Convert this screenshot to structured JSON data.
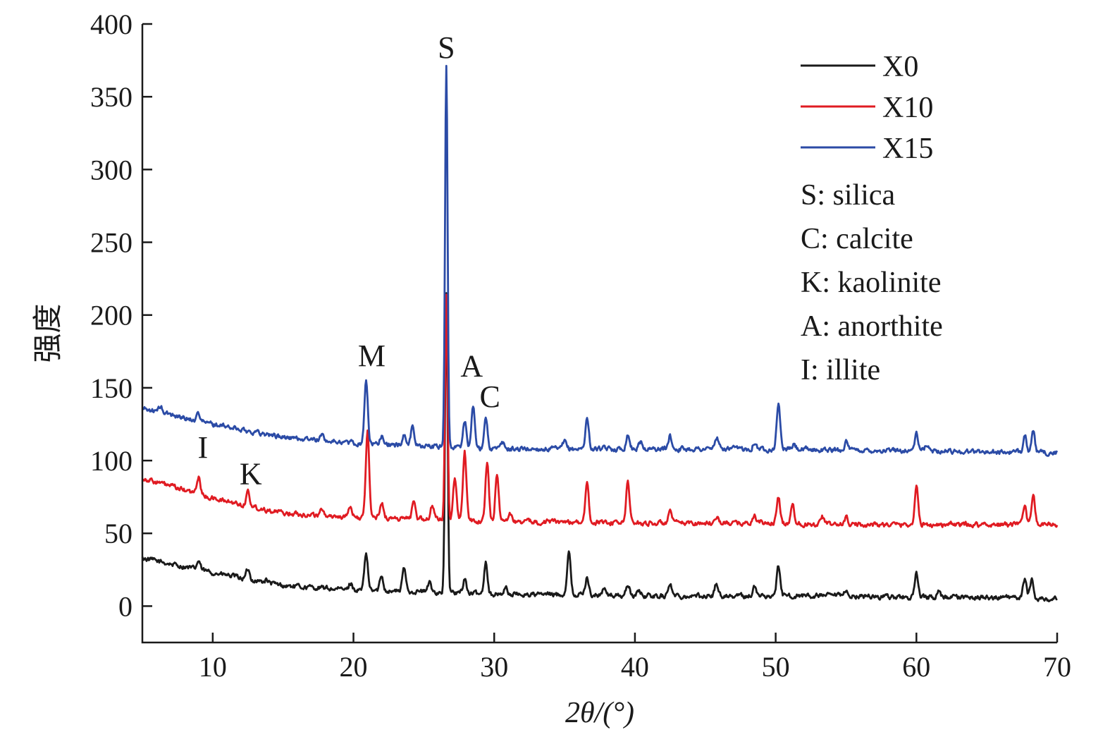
{
  "chart_data": {
    "type": "line",
    "xlabel": "2θ/(°)",
    "ylabel": "强度",
    "xlim": [
      5,
      70
    ],
    "ylim": [
      -25,
      400
    ],
    "x_ticks": [
      10,
      20,
      30,
      40,
      50,
      60,
      70
    ],
    "y_ticks": [
      0,
      50,
      100,
      150,
      200,
      250,
      300,
      350,
      400
    ],
    "legend_position": "top-right",
    "series": [
      {
        "name": "X0",
        "color": "#1a1a1a",
        "baseline": [
          [
            5,
            33
          ],
          [
            10,
            23
          ],
          [
            15,
            14
          ],
          [
            20,
            11
          ],
          [
            25,
            10
          ],
          [
            30,
            8
          ],
          [
            35,
            8
          ],
          [
            40,
            7
          ],
          [
            45,
            7
          ],
          [
            50,
            7
          ],
          [
            55,
            7
          ],
          [
            60,
            6
          ],
          [
            65,
            6
          ],
          [
            70,
            5
          ]
        ],
        "peaks": [
          [
            9,
            31
          ],
          [
            12.5,
            25
          ],
          [
            13.8,
            18
          ],
          [
            19.8,
            16
          ],
          [
            20.9,
            36
          ],
          [
            22,
            21
          ],
          [
            23.6,
            26
          ],
          [
            25.4,
            16
          ],
          [
            26.6,
            215
          ],
          [
            27.9,
            19
          ],
          [
            29.4,
            31
          ],
          [
            30.8,
            13
          ],
          [
            35.3,
            38
          ],
          [
            36.6,
            20
          ],
          [
            37.8,
            12
          ],
          [
            39.5,
            15
          ],
          [
            40.3,
            11
          ],
          [
            42.5,
            16
          ],
          [
            45.8,
            16
          ],
          [
            48.5,
            13
          ],
          [
            50.2,
            28
          ],
          [
            55,
            10
          ],
          [
            60,
            22
          ],
          [
            61.6,
            10
          ],
          [
            67.7,
            19
          ],
          [
            68.2,
            18
          ]
        ]
      },
      {
        "name": "X10",
        "color": "#e01b22",
        "baseline": [
          [
            5,
            88
          ],
          [
            10,
            74
          ],
          [
            15,
            64
          ],
          [
            20,
            61
          ],
          [
            25,
            60
          ],
          [
            30,
            58
          ],
          [
            35,
            58
          ],
          [
            40,
            57
          ],
          [
            45,
            57
          ],
          [
            50,
            57
          ],
          [
            55,
            56
          ],
          [
            60,
            56
          ],
          [
            65,
            56
          ],
          [
            70,
            56
          ]
        ],
        "peaks": [
          [
            9,
            89
          ],
          [
            12.5,
            79
          ],
          [
            17.8,
            67
          ],
          [
            19.8,
            68
          ],
          [
            21,
            120
          ],
          [
            22,
            72
          ],
          [
            24.3,
            73
          ],
          [
            25.6,
            69
          ],
          [
            26.6,
            215
          ],
          [
            27.2,
            87
          ],
          [
            27.9,
            107
          ],
          [
            29.5,
            98
          ],
          [
            30.2,
            92
          ],
          [
            31.1,
            65
          ],
          [
            36.6,
            83
          ],
          [
            39.5,
            86
          ],
          [
            42.5,
            65
          ],
          [
            45.8,
            62
          ],
          [
            48.5,
            62
          ],
          [
            50.2,
            74
          ],
          [
            51.2,
            70
          ],
          [
            53.3,
            62
          ],
          [
            55,
            61
          ],
          [
            60,
            82
          ],
          [
            67.7,
            67
          ],
          [
            68.3,
            78
          ]
        ]
      },
      {
        "name": "X15",
        "color": "#2b4ba6",
        "baseline": [
          [
            5,
            136
          ],
          [
            10,
            125
          ],
          [
            15,
            116
          ],
          [
            20,
            112
          ],
          [
            25,
            110
          ],
          [
            30,
            108
          ],
          [
            35,
            108
          ],
          [
            40,
            108
          ],
          [
            45,
            108
          ],
          [
            50,
            108
          ],
          [
            55,
            107
          ],
          [
            60,
            107
          ],
          [
            65,
            106
          ],
          [
            70,
            105
          ]
        ],
        "peaks": [
          [
            6.3,
            137
          ],
          [
            9,
            133
          ],
          [
            11.7,
            122
          ],
          [
            12.5,
            120
          ],
          [
            17.8,
            118
          ],
          [
            20.9,
            154
          ],
          [
            22,
            117
          ],
          [
            23.6,
            118
          ],
          [
            24.2,
            124
          ],
          [
            26.6,
            372
          ],
          [
            27.9,
            128
          ],
          [
            28.5,
            137
          ],
          [
            29.4,
            131
          ],
          [
            30.6,
            112
          ],
          [
            35,
            113
          ],
          [
            36.6,
            129
          ],
          [
            39.5,
            118
          ],
          [
            40.4,
            113
          ],
          [
            42.5,
            117
          ],
          [
            45.8,
            116
          ],
          [
            48.5,
            113
          ],
          [
            50.2,
            140
          ],
          [
            51.3,
            111
          ],
          [
            55,
            113
          ],
          [
            60,
            118
          ],
          [
            60.7,
            111
          ],
          [
            67.7,
            119
          ],
          [
            68.3,
            119
          ]
        ]
      }
    ],
    "annotations": [
      {
        "text": "S",
        "x": 26.6,
        "y": 372
      },
      {
        "text": "M",
        "x": 21.3,
        "y": 160
      },
      {
        "text": "A",
        "x": 28.4,
        "y": 153
      },
      {
        "text": "C",
        "x": 29.7,
        "y": 132
      },
      {
        "text": "I",
        "x": 9.3,
        "y": 97
      },
      {
        "text": "K",
        "x": 12.7,
        "y": 79
      }
    ],
    "notes": [
      "S: silica",
      "C: calcite",
      "K: kaolinite",
      "A: anorthite",
      "I: illite"
    ]
  }
}
